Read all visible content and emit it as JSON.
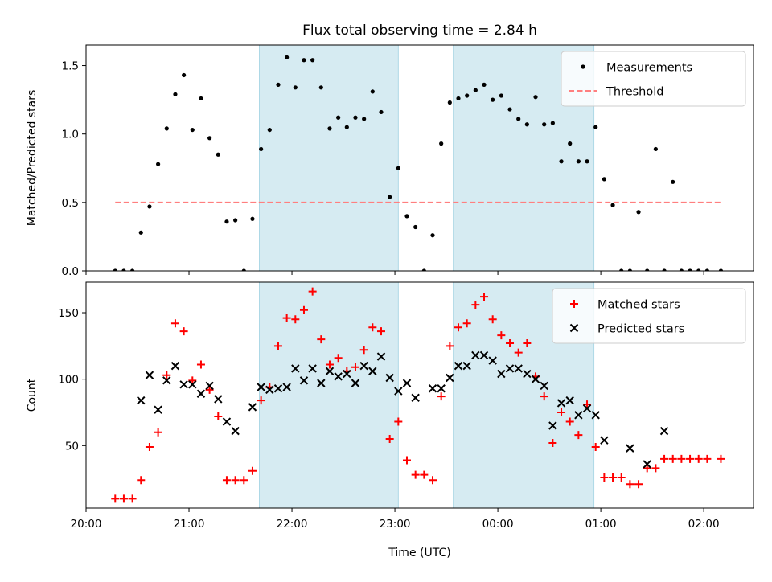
{
  "figure": {
    "title": "Flux total observing time = 2.84 h",
    "xlabel": "Time (UTC)"
  },
  "colors": {
    "shade": "#add8e6",
    "measurements": "#000000",
    "threshold": "#ff7f7f",
    "matched": "#ff0000",
    "predicted": "#000000"
  },
  "chart_data": [
    {
      "type": "scatter",
      "ylabel": "Matched/Predicted stars",
      "ylim": [
        0,
        1.65
      ],
      "yticks": [
        {
          "value": 0.0,
          "label": "0.0"
        },
        {
          "value": 0.5,
          "label": "0.5"
        },
        {
          "value": 1.0,
          "label": "1.0"
        },
        {
          "value": 1.5,
          "label": "1.5"
        }
      ],
      "legend": {
        "position": "top-right",
        "entries": [
          {
            "label": "Measurements",
            "kind": "dot"
          },
          {
            "label": "Threshold",
            "kind": "dashed-line"
          }
        ]
      },
      "threshold": {
        "value": 0.5,
        "x_start": "20:17",
        "x_end": "02:10"
      },
      "shaded_intervals": [
        [
          "21:41",
          "23:02"
        ],
        [
          "23:34",
          "00:56"
        ]
      ],
      "series": [
        {
          "name": "Measurements",
          "x": [
            "20:17",
            "20:22",
            "20:27",
            "20:32",
            "20:37",
            "20:42",
            "20:47",
            "20:52",
            "20:57",
            "21:02",
            "21:07",
            "21:12",
            "21:17",
            "21:22",
            "21:27",
            "21:32",
            "21:37",
            "21:42",
            "21:47",
            "21:52",
            "21:57",
            "22:02",
            "22:07",
            "22:12",
            "22:17",
            "22:22",
            "22:27",
            "22:32",
            "22:37",
            "22:42",
            "22:47",
            "22:52",
            "22:57",
            "23:02",
            "23:07",
            "23:12",
            "23:17",
            "23:22",
            "23:27",
            "23:32",
            "23:37",
            "23:42",
            "23:47",
            "23:52",
            "23:57",
            "00:02",
            "00:07",
            "00:12",
            "00:17",
            "00:22",
            "00:27",
            "00:32",
            "00:37",
            "00:42",
            "00:47",
            "00:52",
            "00:57",
            "01:02",
            "01:07",
            "01:12",
            "01:17",
            "01:22",
            "01:27",
            "01:32",
            "01:37",
            "01:42",
            "01:47",
            "01:52",
            "01:57",
            "02:02",
            "02:10"
          ],
          "y": [
            0.0,
            0.0,
            0.0,
            0.28,
            0.47,
            0.78,
            1.04,
            1.29,
            1.43,
            1.03,
            1.26,
            0.97,
            0.85,
            0.36,
            0.37,
            0.0,
            0.38,
            0.89,
            1.03,
            1.36,
            1.56,
            1.34,
            1.54,
            1.54,
            1.34,
            1.04,
            1.12,
            1.05,
            1.12,
            1.11,
            1.31,
            1.16,
            0.54,
            0.75,
            0.4,
            0.32,
            0.0,
            0.26,
            0.93,
            1.23,
            1.26,
            1.28,
            1.32,
            1.36,
            1.25,
            1.28,
            1.18,
            1.11,
            1.07,
            1.27,
            1.07,
            1.08,
            0.8,
            0.93,
            0.8,
            0.8,
            1.05,
            0.67,
            0.48,
            0.0,
            0.0,
            0.43,
            0.0,
            0.89,
            0.0,
            0.65,
            0.0,
            0.0,
            0.0,
            0.0,
            0.0
          ]
        }
      ]
    },
    {
      "type": "scatter",
      "ylabel": "Count",
      "ylim": [
        3,
        173
      ],
      "yticks": [
        {
          "value": 50,
          "label": "50"
        },
        {
          "value": 100,
          "label": "100"
        },
        {
          "value": 150,
          "label": "150"
        }
      ],
      "xlim": [
        "20:00",
        "02:29"
      ],
      "xticks": [
        "20:00",
        "21:00",
        "22:00",
        "23:00",
        "00:00",
        "01:00",
        "02:00"
      ],
      "legend": {
        "position": "top-right",
        "entries": [
          {
            "label": "Matched stars",
            "kind": "plus"
          },
          {
            "label": "Predicted stars",
            "kind": "cross"
          }
        ]
      },
      "shaded_intervals": [
        [
          "21:41",
          "23:02"
        ],
        [
          "23:34",
          "00:56"
        ]
      ],
      "series": [
        {
          "name": "Matched stars",
          "marker": "+",
          "x": [
            "20:17",
            "20:22",
            "20:27",
            "20:32",
            "20:37",
            "20:42",
            "20:47",
            "20:52",
            "20:57",
            "21:02",
            "21:07",
            "21:12",
            "21:17",
            "21:22",
            "21:27",
            "21:32",
            "21:37",
            "21:42",
            "21:47",
            "21:52",
            "21:57",
            "22:02",
            "22:07",
            "22:12",
            "22:17",
            "22:22",
            "22:27",
            "22:32",
            "22:37",
            "22:42",
            "22:47",
            "22:52",
            "22:57",
            "23:02",
            "23:07",
            "23:12",
            "23:17",
            "23:22",
            "23:27",
            "23:32",
            "23:37",
            "23:42",
            "23:47",
            "23:52",
            "23:57",
            "00:02",
            "00:07",
            "00:12",
            "00:17",
            "00:22",
            "00:27",
            "00:32",
            "00:37",
            "00:42",
            "00:47",
            "00:52",
            "00:57",
            "01:02",
            "01:07",
            "01:12",
            "01:17",
            "01:22",
            "01:27",
            "01:32",
            "01:37",
            "01:42",
            "01:47",
            "01:52",
            "01:57",
            "02:02",
            "02:10"
          ],
          "y": [
            10,
            10,
            10,
            24,
            49,
            60,
            103,
            142,
            136,
            99,
            111,
            92,
            72,
            24,
            24,
            24,
            31,
            84,
            94,
            125,
            146,
            145,
            152,
            166,
            130,
            111,
            116,
            106,
            109,
            122,
            139,
            136,
            55,
            68,
            39,
            28,
            28,
            24,
            87,
            125,
            139,
            142,
            156,
            162,
            145,
            133,
            127,
            120,
            127,
            102,
            87,
            52,
            75,
            68,
            58,
            81,
            49,
            26,
            26,
            26,
            21,
            21,
            33,
            33,
            40,
            40,
            40,
            40,
            40,
            40,
            40
          ]
        },
        {
          "name": "Predicted stars",
          "marker": "x",
          "x": [
            "20:32",
            "20:37",
            "20:42",
            "20:47",
            "20:52",
            "20:57",
            "21:02",
            "21:07",
            "21:12",
            "21:17",
            "21:22",
            "21:27",
            "21:37",
            "21:42",
            "21:47",
            "21:52",
            "21:57",
            "22:02",
            "22:07",
            "22:12",
            "22:17",
            "22:22",
            "22:27",
            "22:32",
            "22:37",
            "22:42",
            "22:47",
            "22:52",
            "22:57",
            "23:02",
            "23:07",
            "23:12",
            "23:22",
            "23:27",
            "23:32",
            "23:37",
            "23:42",
            "23:47",
            "23:52",
            "23:57",
            "00:02",
            "00:07",
            "00:12",
            "00:17",
            "00:22",
            "00:27",
            "00:32",
            "00:37",
            "00:42",
            "00:47",
            "00:52",
            "00:57",
            "01:02",
            "01:17",
            "01:27",
            "01:37"
          ],
          "y": [
            84,
            103,
            77,
            99,
            110,
            96,
            96,
            89,
            95,
            85,
            68,
            61,
            79,
            94,
            92,
            93,
            94,
            108,
            99,
            108,
            97,
            106,
            102,
            104,
            97,
            110,
            106,
            117,
            101,
            91,
            97,
            86,
            93,
            93,
            101,
            110,
            110,
            118,
            118,
            114,
            104,
            108,
            108,
            104,
            100,
            95,
            65,
            82,
            84,
            73,
            78,
            73,
            54,
            48,
            36,
            61
          ]
        }
      ]
    }
  ]
}
